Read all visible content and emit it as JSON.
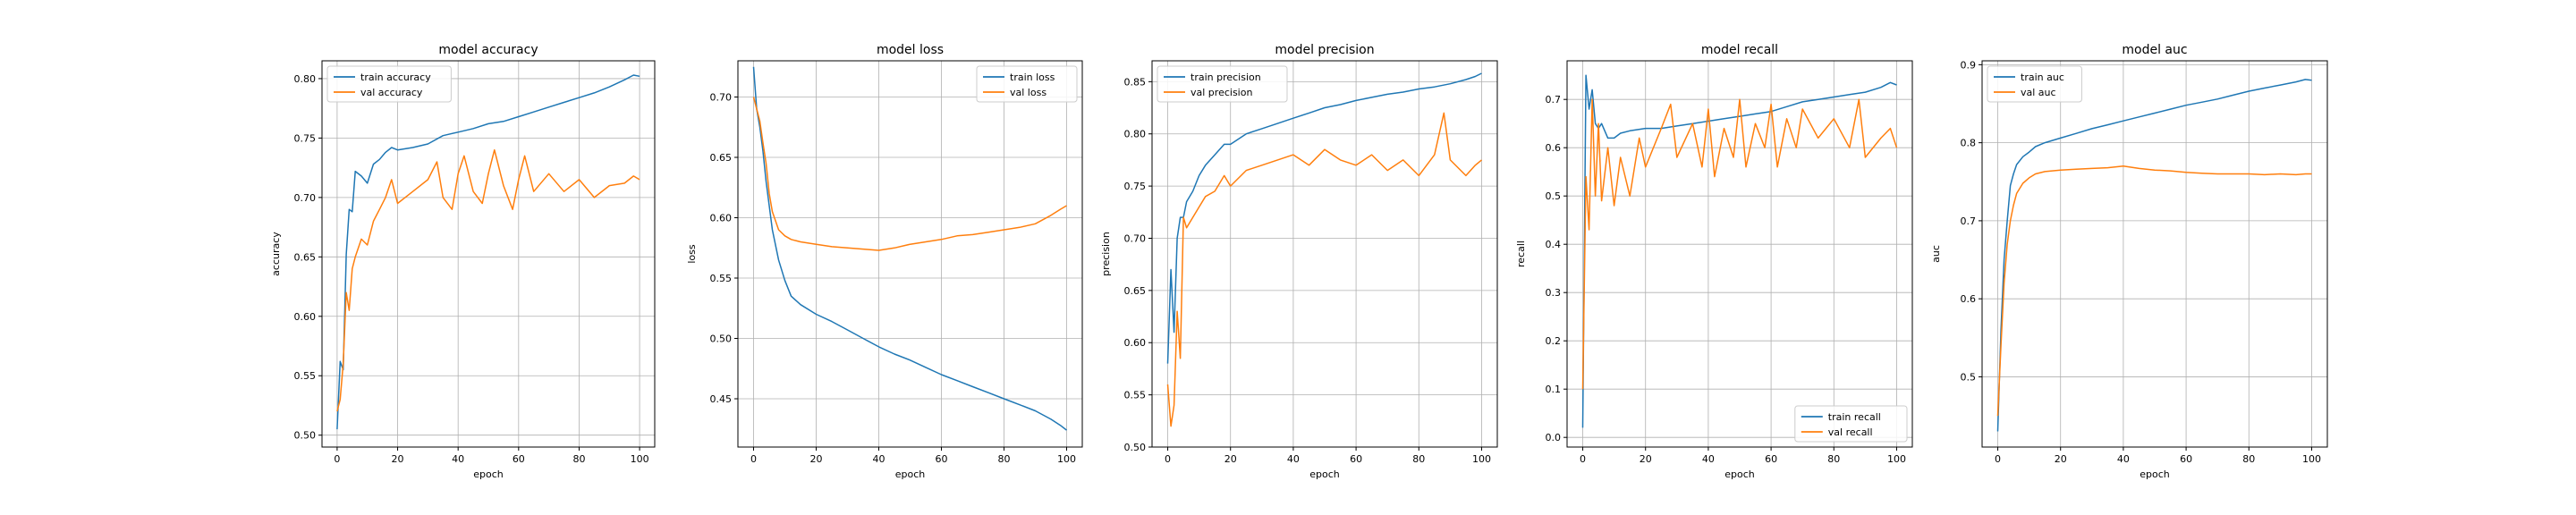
{
  "colors": {
    "train": "#1f77b4",
    "val": "#ff7f0e",
    "grid": "#b0b0b0"
  },
  "chart_data": [
    {
      "type": "line",
      "title": "model accuracy",
      "xlabel": "epoch",
      "ylabel": "accuracy",
      "xlim": [
        -5,
        105
      ],
      "ylim": [
        0.49,
        0.815
      ],
      "xticks": [
        0,
        20,
        40,
        60,
        80,
        100
      ],
      "xtick_labels": [
        "0",
        "20",
        "40",
        "60",
        "80",
        "100"
      ],
      "yticks": [
        0.5,
        0.55,
        0.6,
        0.65,
        0.7,
        0.75,
        0.8
      ],
      "ytick_labels": [
        "0.50",
        "0.55",
        "0.60",
        "0.65",
        "0.70",
        "0.75",
        "0.80"
      ],
      "grid": true,
      "legend_position": "top-left",
      "series": [
        {
          "name": "train accuracy",
          "x": [
            0,
            1,
            2,
            3,
            4,
            5,
            6,
            8,
            10,
            12,
            14,
            16,
            18,
            20,
            25,
            30,
            35,
            40,
            45,
            50,
            55,
            60,
            65,
            70,
            75,
            80,
            85,
            90,
            95,
            98,
            100
          ],
          "y": [
            0.505,
            0.562,
            0.555,
            0.652,
            0.69,
            0.688,
            0.722,
            0.718,
            0.712,
            0.728,
            0.732,
            0.738,
            0.742,
            0.74,
            0.742,
            0.745,
            0.752,
            0.755,
            0.758,
            0.762,
            0.764,
            0.768,
            0.772,
            0.776,
            0.78,
            0.784,
            0.788,
            0.793,
            0.799,
            0.803,
            0.802
          ]
        },
        {
          "name": "val accuracy",
          "x": [
            0,
            1,
            2,
            3,
            4,
            5,
            6,
            8,
            10,
            12,
            14,
            16,
            18,
            20,
            25,
            30,
            33,
            35,
            38,
            40,
            42,
            45,
            48,
            50,
            52,
            55,
            58,
            60,
            62,
            65,
            70,
            75,
            80,
            85,
            90,
            95,
            98,
            100
          ],
          "y": [
            0.52,
            0.53,
            0.56,
            0.62,
            0.605,
            0.64,
            0.65,
            0.665,
            0.66,
            0.68,
            0.69,
            0.7,
            0.715,
            0.695,
            0.705,
            0.715,
            0.73,
            0.7,
            0.69,
            0.72,
            0.735,
            0.705,
            0.695,
            0.72,
            0.74,
            0.71,
            0.69,
            0.715,
            0.735,
            0.705,
            0.72,
            0.705,
            0.715,
            0.7,
            0.71,
            0.712,
            0.718,
            0.715
          ]
        }
      ]
    },
    {
      "type": "line",
      "title": "model loss",
      "xlabel": "epoch",
      "ylabel": "loss",
      "xlim": [
        -5,
        105
      ],
      "ylim": [
        0.41,
        0.73
      ],
      "xticks": [
        0,
        20,
        40,
        60,
        80,
        100
      ],
      "xtick_labels": [
        "0",
        "20",
        "40",
        "60",
        "80",
        "100"
      ],
      "yticks": [
        0.45,
        0.5,
        0.55,
        0.6,
        0.65,
        0.7
      ],
      "ytick_labels": [
        "0.45",
        "0.50",
        "0.55",
        "0.60",
        "0.65",
        "0.70"
      ],
      "grid": true,
      "legend_position": "top-right",
      "series": [
        {
          "name": "train loss",
          "x": [
            0,
            1,
            2,
            3,
            4,
            5,
            6,
            8,
            10,
            12,
            15,
            20,
            25,
            30,
            35,
            40,
            45,
            50,
            55,
            60,
            65,
            70,
            75,
            80,
            85,
            90,
            95,
            98,
            100
          ],
          "y": [
            0.725,
            0.69,
            0.675,
            0.655,
            0.63,
            0.61,
            0.59,
            0.565,
            0.548,
            0.535,
            0.528,
            0.52,
            0.514,
            0.507,
            0.5,
            0.493,
            0.487,
            0.482,
            0.476,
            0.47,
            0.465,
            0.46,
            0.455,
            0.45,
            0.445,
            0.44,
            0.433,
            0.428,
            0.424
          ]
        },
        {
          "name": "val loss",
          "x": [
            0,
            1,
            2,
            3,
            4,
            5,
            6,
            8,
            10,
            12,
            15,
            20,
            25,
            30,
            35,
            40,
            45,
            50,
            55,
            60,
            65,
            70,
            75,
            80,
            85,
            90,
            95,
            98,
            100
          ],
          "y": [
            0.7,
            0.69,
            0.68,
            0.662,
            0.645,
            0.62,
            0.605,
            0.59,
            0.585,
            0.582,
            0.58,
            0.578,
            0.576,
            0.575,
            0.574,
            0.573,
            0.575,
            0.578,
            0.58,
            0.582,
            0.585,
            0.586,
            0.588,
            0.59,
            0.592,
            0.595,
            0.602,
            0.607,
            0.61
          ]
        }
      ]
    },
    {
      "type": "line",
      "title": "model precision",
      "xlabel": "epoch",
      "ylabel": "precision",
      "xlim": [
        -5,
        105
      ],
      "ylim": [
        0.5,
        0.87
      ],
      "xticks": [
        0,
        20,
        40,
        60,
        80,
        100
      ],
      "xtick_labels": [
        "0",
        "20",
        "40",
        "60",
        "80",
        "100"
      ],
      "yticks": [
        0.5,
        0.55,
        0.6,
        0.65,
        0.7,
        0.75,
        0.8,
        0.85
      ],
      "ytick_labels": [
        "0.50",
        "0.55",
        "0.60",
        "0.65",
        "0.70",
        "0.75",
        "0.80",
        "0.85"
      ],
      "grid": true,
      "legend_position": "top-left",
      "series": [
        {
          "name": "train precision",
          "x": [
            0,
            1,
            2,
            3,
            4,
            5,
            6,
            8,
            10,
            12,
            15,
            18,
            20,
            25,
            30,
            35,
            40,
            45,
            50,
            55,
            60,
            65,
            70,
            75,
            80,
            85,
            90,
            95,
            98,
            100
          ],
          "y": [
            0.58,
            0.67,
            0.61,
            0.7,
            0.72,
            0.72,
            0.735,
            0.745,
            0.76,
            0.77,
            0.78,
            0.79,
            0.79,
            0.8,
            0.805,
            0.81,
            0.815,
            0.82,
            0.825,
            0.828,
            0.832,
            0.835,
            0.838,
            0.84,
            0.843,
            0.845,
            0.848,
            0.852,
            0.855,
            0.858
          ]
        },
        {
          "name": "val precision",
          "x": [
            0,
            1,
            2,
            3,
            4,
            5,
            6,
            8,
            10,
            12,
            15,
            18,
            20,
            25,
            30,
            35,
            40,
            45,
            50,
            55,
            60,
            65,
            70,
            75,
            80,
            85,
            88,
            90,
            95,
            98,
            100
          ],
          "y": [
            0.56,
            0.52,
            0.54,
            0.63,
            0.585,
            0.72,
            0.71,
            0.72,
            0.73,
            0.74,
            0.745,
            0.76,
            0.75,
            0.765,
            0.77,
            0.775,
            0.78,
            0.77,
            0.785,
            0.775,
            0.77,
            0.78,
            0.765,
            0.775,
            0.76,
            0.78,
            0.82,
            0.775,
            0.76,
            0.77,
            0.775
          ]
        }
      ]
    },
    {
      "type": "line",
      "title": "model recall",
      "xlabel": "epoch",
      "ylabel": "recall",
      "xlim": [
        -5,
        105
      ],
      "ylim": [
        -0.02,
        0.78
      ],
      "xticks": [
        0,
        20,
        40,
        60,
        80,
        100
      ],
      "xtick_labels": [
        "0",
        "20",
        "40",
        "60",
        "80",
        "100"
      ],
      "yticks": [
        0.0,
        0.1,
        0.2,
        0.3,
        0.4,
        0.5,
        0.6,
        0.7
      ],
      "ytick_labels": [
        "0.0",
        "0.1",
        "0.2",
        "0.3",
        "0.4",
        "0.5",
        "0.6",
        "0.7"
      ],
      "grid": true,
      "legend_position": "bottom-right",
      "series": [
        {
          "name": "train recall",
          "x": [
            0,
            1,
            2,
            3,
            4,
            5,
            6,
            8,
            10,
            12,
            15,
            20,
            25,
            30,
            35,
            40,
            45,
            50,
            55,
            60,
            65,
            70,
            75,
            80,
            85,
            90,
            95,
            98,
            100
          ],
          "y": [
            0.02,
            0.75,
            0.68,
            0.72,
            0.65,
            0.64,
            0.65,
            0.62,
            0.62,
            0.63,
            0.635,
            0.64,
            0.64,
            0.645,
            0.65,
            0.655,
            0.66,
            0.665,
            0.67,
            0.675,
            0.685,
            0.695,
            0.7,
            0.705,
            0.71,
            0.715,
            0.725,
            0.735,
            0.73
          ]
        },
        {
          "name": "val recall",
          "x": [
            0,
            1,
            2,
            3,
            4,
            5,
            6,
            8,
            10,
            12,
            15,
            18,
            20,
            25,
            28,
            30,
            35,
            38,
            40,
            42,
            45,
            48,
            50,
            52,
            55,
            58,
            60,
            62,
            65,
            68,
            70,
            75,
            80,
            85,
            88,
            90,
            95,
            98,
            100
          ],
          "y": [
            0.1,
            0.54,
            0.43,
            0.7,
            0.5,
            0.65,
            0.49,
            0.6,
            0.48,
            0.58,
            0.5,
            0.62,
            0.56,
            0.64,
            0.69,
            0.58,
            0.65,
            0.56,
            0.68,
            0.54,
            0.64,
            0.58,
            0.7,
            0.56,
            0.65,
            0.6,
            0.69,
            0.56,
            0.66,
            0.6,
            0.68,
            0.62,
            0.66,
            0.6,
            0.7,
            0.58,
            0.62,
            0.64,
            0.6
          ]
        }
      ]
    },
    {
      "type": "line",
      "title": "model auc",
      "xlabel": "epoch",
      "ylabel": "auc",
      "xlim": [
        -5,
        105
      ],
      "ylim": [
        0.41,
        0.905
      ],
      "xticks": [
        0,
        20,
        40,
        60,
        80,
        100
      ],
      "xtick_labels": [
        "0",
        "20",
        "40",
        "60",
        "80",
        "100"
      ],
      "yticks": [
        0.5,
        0.6,
        0.7,
        0.8,
        0.9
      ],
      "ytick_labels": [
        "0.5",
        "0.6",
        "0.7",
        "0.8",
        "0.9"
      ],
      "grid": true,
      "legend_position": "top-left",
      "series": [
        {
          "name": "train auc",
          "x": [
            0,
            1,
            2,
            3,
            4,
            5,
            6,
            8,
            10,
            12,
            15,
            20,
            25,
            30,
            35,
            40,
            45,
            50,
            55,
            60,
            65,
            70,
            75,
            80,
            85,
            90,
            95,
            98,
            100
          ],
          "y": [
            0.43,
            0.56,
            0.65,
            0.7,
            0.745,
            0.76,
            0.772,
            0.782,
            0.788,
            0.795,
            0.8,
            0.806,
            0.812,
            0.818,
            0.823,
            0.828,
            0.833,
            0.838,
            0.843,
            0.848,
            0.852,
            0.856,
            0.861,
            0.866,
            0.87,
            0.874,
            0.878,
            0.881,
            0.88
          ]
        },
        {
          "name": "val auc",
          "x": [
            0,
            1,
            2,
            3,
            4,
            5,
            6,
            8,
            10,
            12,
            15,
            20,
            25,
            30,
            35,
            40,
            45,
            50,
            55,
            60,
            65,
            70,
            75,
            80,
            85,
            90,
            95,
            98,
            100
          ],
          "y": [
            0.45,
            0.54,
            0.62,
            0.67,
            0.7,
            0.72,
            0.735,
            0.748,
            0.755,
            0.76,
            0.763,
            0.765,
            0.766,
            0.767,
            0.768,
            0.77,
            0.767,
            0.765,
            0.764,
            0.762,
            0.761,
            0.76,
            0.76,
            0.76,
            0.759,
            0.76,
            0.759,
            0.76,
            0.76
          ]
        }
      ]
    }
  ]
}
